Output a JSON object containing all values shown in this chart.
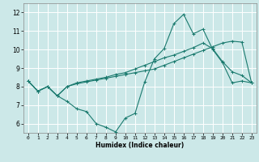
{
  "xlabel": "Humidex (Indice chaleur)",
  "background_color": "#cce8e8",
  "grid_color": "#ffffff",
  "line_color": "#1a7a6e",
  "xlim": [
    -0.5,
    23.5
  ],
  "ylim": [
    5.5,
    12.5
  ],
  "xticks": [
    0,
    1,
    2,
    3,
    4,
    5,
    6,
    7,
    8,
    9,
    10,
    11,
    12,
    13,
    14,
    15,
    16,
    17,
    18,
    19,
    20,
    21,
    22,
    23
  ],
  "yticks": [
    6,
    7,
    8,
    9,
    10,
    11,
    12
  ],
  "line1_x": [
    0,
    1,
    2,
    3,
    4,
    5,
    6,
    7,
    8,
    9,
    10,
    11,
    12,
    13,
    14,
    15,
    16,
    17,
    18,
    19,
    20,
    21,
    22,
    23
  ],
  "line1_y": [
    8.3,
    7.75,
    8.0,
    7.5,
    7.2,
    6.8,
    6.65,
    6.0,
    5.8,
    5.55,
    6.3,
    6.55,
    8.25,
    9.5,
    10.05,
    11.4,
    11.9,
    10.85,
    11.1,
    10.0,
    9.3,
    8.2,
    8.3,
    8.2
  ],
  "line2_x": [
    0,
    1,
    2,
    3,
    4,
    5,
    6,
    7,
    8,
    9,
    10,
    11,
    12,
    13,
    14,
    15,
    16,
    17,
    18,
    19,
    20,
    21,
    22,
    23
  ],
  "line2_y": [
    8.3,
    7.75,
    8.0,
    7.5,
    8.0,
    8.15,
    8.25,
    8.35,
    8.45,
    8.55,
    8.65,
    8.75,
    8.85,
    8.95,
    9.15,
    9.35,
    9.55,
    9.75,
    9.95,
    10.15,
    10.35,
    10.45,
    10.4,
    8.2
  ],
  "line3_x": [
    0,
    1,
    2,
    3,
    4,
    5,
    6,
    7,
    8,
    9,
    10,
    11,
    12,
    13,
    14,
    15,
    16,
    17,
    18,
    19,
    20,
    21,
    22,
    23
  ],
  "line3_y": [
    8.3,
    7.75,
    8.0,
    7.5,
    8.0,
    8.2,
    8.3,
    8.4,
    8.5,
    8.65,
    8.75,
    8.95,
    9.15,
    9.35,
    9.55,
    9.7,
    9.9,
    10.1,
    10.35,
    10.05,
    9.35,
    8.8,
    8.6,
    8.2
  ]
}
